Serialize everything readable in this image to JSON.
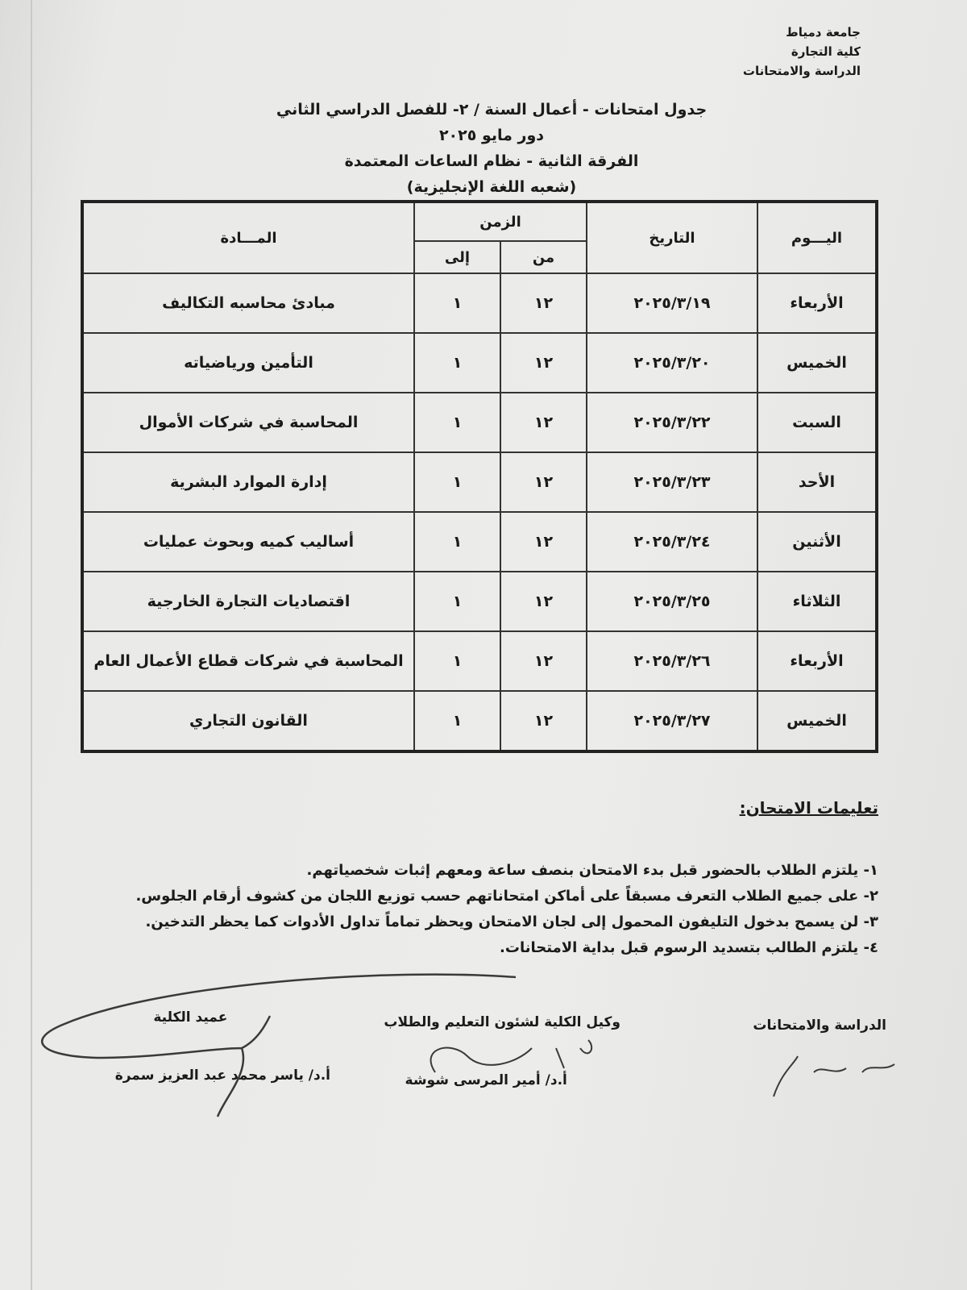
{
  "header": {
    "university": "جامعة دمياط",
    "faculty": "كلية التجارة",
    "department": "الدراسة والامتحانات"
  },
  "titles": {
    "line1": "جدول امتحانات - أعمال السنة / ٢- للفصل الدراسي الثاني",
    "line2": "دور مايو ٢٠٢٥",
    "line3": "الفرقة الثانية - نظام الساعات المعتمدة",
    "line4": "(شعبه اللغة الإنجليزية)"
  },
  "table": {
    "headers": {
      "day": "اليـــوم",
      "date": "التاريخ",
      "time": "الزمن",
      "from": "من",
      "to": "إلى",
      "subject": "المـــادة"
    },
    "rows": [
      {
        "day": "الأربعاء",
        "date": "٢٠٢٥/٣/١٩",
        "from": "١٢",
        "to": "١",
        "subject": "مبادئ محاسبه التكاليف"
      },
      {
        "day": "الخميس",
        "date": "٢٠٢٥/٣/٢٠",
        "from": "١٢",
        "to": "١",
        "subject": "التأمين ورياضياته"
      },
      {
        "day": "السبت",
        "date": "٢٠٢٥/٣/٢٢",
        "from": "١٢",
        "to": "١",
        "subject": "المحاسبة في شركات الأموال"
      },
      {
        "day": "الأحد",
        "date": "٢٠٢٥/٣/٢٣",
        "from": "١٢",
        "to": "١",
        "subject": "إدارة الموارد البشرية"
      },
      {
        "day": "الأثنين",
        "date": "٢٠٢٥/٣/٢٤",
        "from": "١٢",
        "to": "١",
        "subject": "أساليب كميه وبحوث عمليات"
      },
      {
        "day": "الثلاثاء",
        "date": "٢٠٢٥/٣/٢٥",
        "from": "١٢",
        "to": "١",
        "subject": "اقتصاديات التجارة الخارجية"
      },
      {
        "day": "الأربعاء",
        "date": "٢٠٢٥/٣/٢٦",
        "from": "١٢",
        "to": "١",
        "subject": "المحاسبة في شركات قطاع الأعمال العام"
      },
      {
        "day": "الخميس",
        "date": "٢٠٢٥/٣/٢٧",
        "from": "١٢",
        "to": "١",
        "subject": "القانون التجاري"
      }
    ]
  },
  "instructions": {
    "title": "تعليمات الامتحان:",
    "items": [
      "١- يلتزم الطلاب بالحضور قبل بدء الامتحان بنصف ساعة ومعهم إثبات شخصياتهم.",
      "٢- على جميع الطلاب التعرف مسبقاً على أماكن امتحاناتهم حسب توزيع اللجان من كشوف أرقام الجلوس.",
      "٣- لن يسمح بدخول التليفون المحمول إلى لجان الامتحان ويحظر تماماً تداول الأدوات كما يحظر التدخين.",
      "٤- يلتزم الطالب بتسديد الرسوم قبل بداية الامتحانات."
    ]
  },
  "signatures": {
    "exams": {
      "title": "الدراسة والامتحانات"
    },
    "vice_dean": {
      "title": "وكيل الكلية لشئون التعليم والطلاب",
      "name": "أ.د/ أمير المرسى شوشة"
    },
    "dean": {
      "title": "عميد الكلية",
      "name": "أ.د/ ياسر محمد عبد العزيز سمرة"
    }
  }
}
